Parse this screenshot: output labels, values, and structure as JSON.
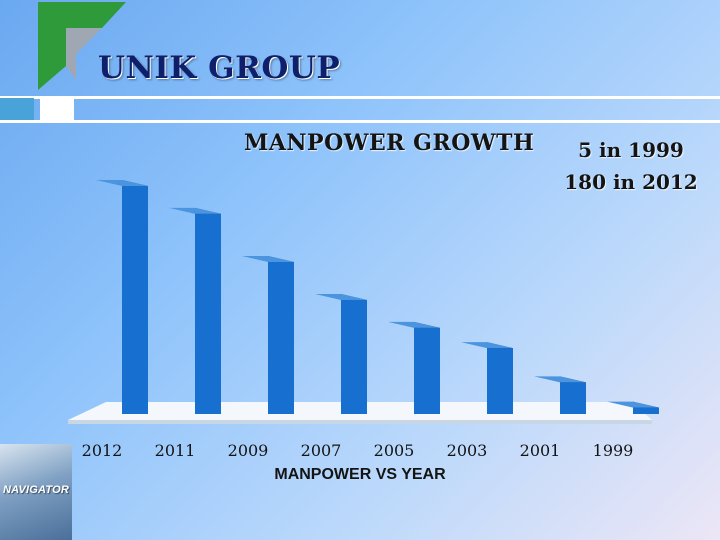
{
  "brand": {
    "name": "UNIK GROUP"
  },
  "stats": {
    "line1": "5 in 1999",
    "line2": "180 in 2012"
  },
  "footer_logo": {
    "text": "NAVIGATOR"
  },
  "colors": {
    "bar_front": "#1770cf",
    "bar_side": "#0d3c7b",
    "brand_text": "#0e1f6b"
  },
  "chart_data": {
    "type": "bar",
    "title": "MANPOWER GROWTH",
    "xlabel": "MANPOWER VS YEAR",
    "ylabel": "",
    "categories": [
      "2012",
      "2011",
      "2009",
      "2007",
      "2005",
      "2003",
      "2001",
      "1999"
    ],
    "values": [
      180,
      158,
      120,
      90,
      68,
      52,
      25,
      5
    ],
    "ylim": [
      0,
      180
    ],
    "grid": false,
    "legend": "none"
  }
}
